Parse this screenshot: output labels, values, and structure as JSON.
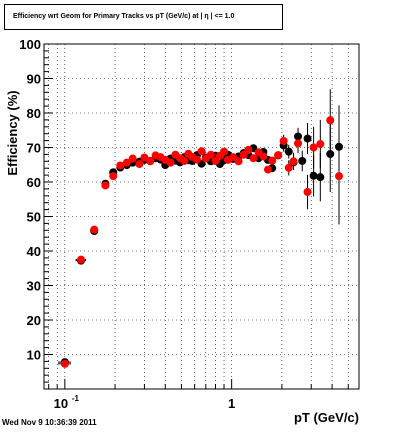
{
  "chart_data": {
    "type": "scatter",
    "title": "Efficiency wrt Geom for Primary Tracks vs pT (GeV/c) at |  η  | <= 1.0",
    "xlabel": "pT (GeV/c)",
    "ylabel": "Efficiency (%)",
    "xscale": "log",
    "xlim": [
      0.075,
      5.8
    ],
    "ylim": [
      0,
      100
    ],
    "x_tick_labels": [
      {
        "value": 0.1,
        "base": "10",
        "exp": "-1"
      },
      {
        "value": 1,
        "base": "1",
        "exp": ""
      }
    ],
    "y_ticks": [
      10,
      20,
      30,
      40,
      50,
      60,
      70,
      80,
      90,
      100
    ],
    "grid": true,
    "series": [
      {
        "color": "#000000",
        "points": [
          [
            0.1,
            7.8,
            0,
            0.009
          ],
          [
            0.125,
            37.2,
            0,
            0.009
          ],
          [
            0.15,
            45.8,
            0,
            0.008
          ],
          [
            0.175,
            59.5,
            0,
            0.007
          ],
          [
            0.195,
            62.8,
            0,
            0.006
          ],
          [
            0.215,
            64.2,
            0,
            0.007
          ],
          [
            0.235,
            64.9,
            0,
            0.008
          ],
          [
            0.255,
            65.6,
            0,
            0.008
          ],
          [
            0.28,
            65.9,
            0,
            0.009
          ],
          [
            0.3,
            66.4,
            0,
            0.009
          ],
          [
            0.325,
            66.1,
            0,
            0.01
          ],
          [
            0.35,
            66.9,
            0,
            0.01
          ],
          [
            0.375,
            66.5,
            0,
            0.011
          ],
          [
            0.4,
            64.9,
            0,
            0.011
          ],
          [
            0.43,
            66.8,
            0,
            0.012
          ],
          [
            0.46,
            66.2,
            0,
            0.012
          ],
          [
            0.49,
            65.7,
            0,
            0.013
          ],
          [
            0.52,
            67.2,
            0,
            0.014
          ],
          [
            0.55,
            66.3,
            0,
            0.014
          ],
          [
            0.58,
            66.1,
            0,
            0.015
          ],
          [
            0.62,
            67.8,
            0,
            0.016
          ],
          [
            0.66,
            65.3,
            0,
            0.017
          ],
          [
            0.7,
            67.1,
            0,
            0.018
          ],
          [
            0.75,
            66.0,
            0,
            0.02
          ],
          [
            0.8,
            67.6,
            0,
            0.02
          ],
          [
            0.85,
            65.2,
            0,
            0.02
          ],
          [
            0.9,
            66.3,
            0,
            0.022
          ],
          [
            0.95,
            67.9,
            0,
            0.024
          ],
          [
            1.02,
            66.7,
            0,
            0.026
          ],
          [
            1.1,
            67.4,
            0,
            0.03
          ],
          [
            1.18,
            68.4,
            0,
            0.03
          ],
          [
            1.26,
            67.8,
            0,
            0.03
          ],
          [
            1.35,
            69.8,
            0,
            0.035
          ],
          [
            1.45,
            66.9,
            0,
            0.04
          ],
          [
            1.55,
            68.7,
            0,
            0.04
          ],
          [
            1.65,
            66.4,
            0,
            0.04
          ],
          [
            1.75,
            64.0,
            0,
            0.045
          ],
          [
            1.9,
            67.7,
            0,
            0.05
          ],
          [
            2.05,
            70.6,
            1.8,
            0.05
          ],
          [
            2.2,
            68.8,
            2.0,
            0.05
          ],
          [
            2.35,
            65.7,
            2.2,
            0.06
          ],
          [
            2.5,
            73.2,
            2.5,
            0.06
          ],
          [
            2.65,
            66.1,
            3.0,
            0.07
          ],
          [
            2.85,
            72.6,
            4.5,
            0.08
          ],
          [
            3.1,
            61.8,
            6.0,
            0.08
          ],
          [
            3.4,
            61.4,
            7.0,
            0.09
          ],
          [
            3.9,
            68.1,
            11.0,
            0.12
          ],
          [
            4.4,
            70.2,
            12.0,
            0.15
          ]
        ]
      },
      {
        "color": "#ff0000",
        "points": [
          [
            0.1,
            7.3,
            0,
            0.009
          ],
          [
            0.125,
            37.5,
            0,
            0.009
          ],
          [
            0.15,
            46.2,
            0,
            0.008
          ],
          [
            0.175,
            59.0,
            0,
            0.007
          ],
          [
            0.195,
            61.7,
            0,
            0.006
          ],
          [
            0.215,
            64.8,
            0,
            0.007
          ],
          [
            0.235,
            65.6,
            0,
            0.008
          ],
          [
            0.255,
            66.8,
            0,
            0.008
          ],
          [
            0.28,
            65.2,
            0,
            0.009
          ],
          [
            0.3,
            67.1,
            0,
            0.009
          ],
          [
            0.325,
            66.0,
            0,
            0.01
          ],
          [
            0.35,
            67.7,
            0,
            0.01
          ],
          [
            0.375,
            67.2,
            0,
            0.011
          ],
          [
            0.4,
            66.4,
            0,
            0.011
          ],
          [
            0.43,
            65.6,
            0,
            0.012
          ],
          [
            0.46,
            67.9,
            0,
            0.012
          ],
          [
            0.49,
            66.9,
            0,
            0.013
          ],
          [
            0.52,
            66.1,
            0,
            0.014
          ],
          [
            0.55,
            68.2,
            0,
            0.014
          ],
          [
            0.58,
            67.3,
            0,
            0.015
          ],
          [
            0.62,
            66.5,
            0,
            0.016
          ],
          [
            0.66,
            68.9,
            0,
            0.017
          ],
          [
            0.7,
            66.8,
            0,
            0.018
          ],
          [
            0.75,
            67.9,
            0,
            0.02
          ],
          [
            0.8,
            66.1,
            0,
            0.02
          ],
          [
            0.85,
            67.6,
            0,
            0.02
          ],
          [
            0.9,
            68.8,
            0,
            0.022
          ],
          [
            0.95,
            66.4,
            0,
            0.024
          ],
          [
            1.02,
            67.2,
            0,
            0.026
          ],
          [
            1.1,
            66.0,
            0,
            0.03
          ],
          [
            1.18,
            67.9,
            0,
            0.03
          ],
          [
            1.26,
            69.3,
            0,
            0.03
          ],
          [
            1.35,
            66.9,
            0,
            0.035
          ],
          [
            1.45,
            68.6,
            0,
            0.04
          ],
          [
            1.55,
            67.4,
            0,
            0.04
          ],
          [
            1.65,
            63.6,
            0,
            0.04
          ],
          [
            1.75,
            66.2,
            0,
            0.045
          ],
          [
            1.9,
            67.8,
            0,
            0.05
          ],
          [
            2.05,
            71.9,
            1.8,
            0.05
          ],
          [
            2.2,
            64.1,
            2.2,
            0.05
          ],
          [
            2.35,
            66.0,
            2.5,
            0.06
          ],
          [
            2.5,
            71.2,
            2.8,
            0.06
          ],
          [
            2.85,
            57.1,
            5.0,
            0.08
          ],
          [
            3.1,
            70.0,
            6.0,
            0.08
          ],
          [
            3.4,
            71.0,
            7.0,
            0.09
          ],
          [
            3.9,
            77.9,
            9.0,
            0.12
          ],
          [
            4.4,
            61.7,
            14.0,
            0.15
          ]
        ]
      }
    ]
  },
  "date_stamp": "Wed Nov  9 10:36:39 2011"
}
